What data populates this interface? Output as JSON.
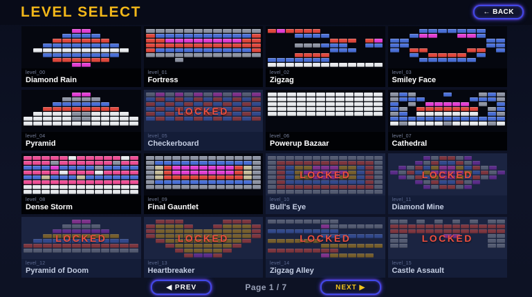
{
  "header": {
    "title": "LEVEL SELECT",
    "back_label": "← BACK"
  },
  "footer": {
    "prev_label": "◀ PREV",
    "page_label": "Page 1 / 7",
    "next_label": "NEXT ▶"
  },
  "locked_label": "LOCKED",
  "colors": {
    "title_yellow": "#f2b719",
    "locked_text_red": "#ee4f3f",
    "button_glow_blue": "#4149e8",
    "next_label_yellow": "#f2c31c",
    "background_navy": "#0e1326"
  },
  "palette": {
    "r": "#e0483e",
    "b": "#4a6fd6",
    "m": "#e33fd4",
    "g": "#8d93a3",
    "w": "#e8eaee",
    "o": "#d29a1b",
    "p": "#9b34d0",
    "t": "#c6bd9b",
    "k": "#ee4f96"
  },
  "levels": [
    {
      "id": "level_00",
      "name": "Diamond Rain",
      "locked": false,
      "pattern": [
        ".....mm.....",
        "....bbbb....",
        "...rrrrrr...",
        "..bbbbbbbb..",
        ".wwwwwwwwww.",
        "..bbbbbbbb..",
        "...rrrrrr...",
        ".....mm....."
      ]
    },
    {
      "id": "level_01",
      "name": "Fortress",
      "locked": false,
      "pattern": [
        "gggggggggggg",
        "rbbbbbbbbbbr",
        "rrmmmmmmmmrr",
        "rrrrrrrrrrrr",
        "rbbbbbbbbbbr",
        "gggggggggggg",
        "...g........"
      ]
    },
    {
      "id": "level_02",
      "name": "Zigzag",
      "locked": false,
      "pattern": [
        "rmrrrr.......",
        "...bbbb......",
        ".......rrr.rm",
        "...gggbbb..bb",
        ".......bbb...",
        "...rrrr......",
        "bbbbbbb......",
        "wwwwwwwwwwwww"
      ]
    },
    {
      "id": "level_03",
      "name": "Smiley Face",
      "locked": false,
      "pattern": [
        "...bbbbbbb..",
        "..bmm..mmb..",
        "bb........bb",
        "bb........bb",
        "b.rr....rr.b",
        "..b.rrrr.b..",
        "...bbbbbb..."
      ]
    },
    {
      "id": "level_04",
      "name": "Pyramid",
      "locked": false,
      "pattern": [
        ".....mm.....",
        "....gggg....",
        "...bbbbbb...",
        "..rrrrrrrr..",
        ".wwwwggwwww.",
        "wwwwwggwwwww",
        "wwwwwwwwwwww"
      ]
    },
    {
      "id": "level_05",
      "name": "Checkerboard",
      "locked": true,
      "pattern": [
        "gmgmgmgmgmgm",
        "brbrbrbrbrbr",
        "rbrbrbrbrbrb",
        "brbrbrbrbrbr",
        "rbrbrbrbrbrb",
        "brbrbrbrbrbr"
      ]
    },
    {
      "id": "level_06",
      "name": "Powerup Bazaar",
      "locked": false,
      "pattern": [
        "wwwwwwwwwwww",
        "wwwwwwwwwwww",
        "wwwwwwwwwwww",
        "wwwwwwwwwwww",
        "wwwwwwwwwwww"
      ]
    },
    {
      "id": "level_07",
      "name": "Cathedral",
      "locked": false,
      "pattern": [
        "gbg...b...gbg",
        "gbbb.....bbbg",
        "b.g.mmmmm.g.b",
        "bg.rrrrrrr.gb",
        "gb.wwwwwww.bg",
        "bbbbbbbbbbbbb",
        "wgwwwwgwwwwgw"
      ]
    },
    {
      "id": "level_08",
      "name": "Dense Storm",
      "locked": false,
      "pattern": [
        "kkkkkwkkkkkwk",
        "kkkgkkkkkkgkk",
        "bbbmbbbbgbbbb",
        "kkkkwkkkwkkkk",
        "bbtbbbtbbbbbb",
        "kkkkkkkkkkkkk",
        "wwwwwwwwwwwww",
        "wwwwwwwwwwwww"
      ]
    },
    {
      "id": "level_09",
      "name": "Final Gauntlet",
      "locked": false,
      "pattern": [
        "ggggggggggggg",
        "gbbbbbbbbbbbg",
        "gtrmmmmmmmrtg",
        "gtrmmmmmmmrtg",
        "gtrrrrrrrrrtg",
        "gbbbbbbbbbbbg",
        "ggggggggggggg"
      ]
    },
    {
      "id": "level_10",
      "name": "Bull's Eye",
      "locked": true,
      "pattern": [
        "ggggggggggggg",
        "grrrrrrrrrrrg",
        "grboommmoobrg",
        "grbommmmmobrg",
        "grboommmoobrg",
        "grbbbbbbbbbrg",
        "grrrrrrrrrrrg",
        "ggggggggggggg"
      ]
    },
    {
      "id": "level_11",
      "name": "Diamond Mine",
      "locked": true,
      "pattern": [
        "....pgrrgp....",
        "...pgrbbrgp...",
        ".pgrbommobrgp.",
        "pgrbommmmobrgp",
        ".pgrbommobrgp.",
        "...pgrbbrgp...",
        "....pgrrgp...."
      ]
    },
    {
      "id": "level_12",
      "name": "Pyramid of Doom",
      "locked": true,
      "pattern": [
        ".....mm.....",
        "....gggg....",
        "...pppppp...",
        "..oooooooo..",
        ".bbbbbbbbbb.",
        "rrrrrrrrrrrr",
        "gggggggggggg"
      ]
    },
    {
      "id": "level_13",
      "name": "Heartbreaker",
      "locked": true,
      "pattern": [
        ".rrr....rrr.",
        "rooor..rooor",
        "roooooooooor",
        "roooooooooor",
        ".roooooooor.",
        "..roooooor..",
        "...roooor...",
        "....rppr...."
      ]
    },
    {
      "id": "level_14",
      "name": "Zigzag Alley",
      "locked": true,
      "pattern": [
        "gggggggg.....",
        "......mgggggg",
        "bbbbbbbb.....",
        "......bbbbbbb",
        "oooooo.......",
        "......ooooooo",
        "rrrrrrrr.....",
        "......mooooo."
      ]
    },
    {
      "id": "level_15",
      "name": "Castle Assault",
      "locked": true,
      "pattern": [
        "gg.g.g.g.g.gg",
        "rrrrrrrrrrrrr",
        "rrrrrrrrrrrrr",
        "gg....mm...gg",
        "gg.........gg",
        "gg.........gg"
      ]
    }
  ]
}
